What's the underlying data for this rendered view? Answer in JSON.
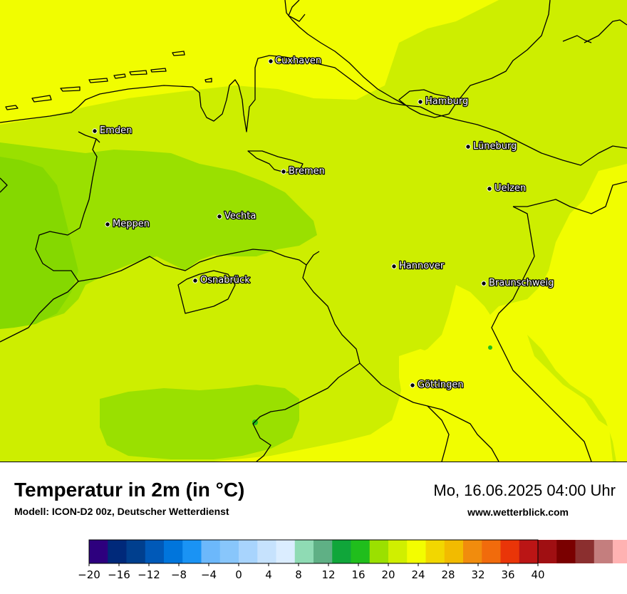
{
  "header": {
    "title": "Temperatur in 2m (in °C)",
    "model": "Modell: ICON-D2 00z, Deutscher Wetterdienst",
    "datetime": "Mo, 16.06.2025 04:00 Uhr",
    "website": "www.wetterblick.com"
  },
  "cities": [
    {
      "name": "Cuxhaven",
      "key": "cuxhaven"
    },
    {
      "name": "Hamburg",
      "key": "hamburg"
    },
    {
      "name": "Emden",
      "key": "emden"
    },
    {
      "name": "Lüneburg",
      "key": "lueneburg"
    },
    {
      "name": "Bremen",
      "key": "bremen"
    },
    {
      "name": "Uelzen",
      "key": "uelzen"
    },
    {
      "name": "Vechta",
      "key": "vechta"
    },
    {
      "name": "Meppen",
      "key": "meppen"
    },
    {
      "name": "Hannover",
      "key": "hannover"
    },
    {
      "name": "Osnabrück",
      "key": "osnabrueck"
    },
    {
      "name": "Braunschweig",
      "key": "braunschweig"
    },
    {
      "name": "Göttingen",
      "key": "goettingen"
    }
  ],
  "legend": {
    "unit": "°C",
    "min": -20,
    "max": 40,
    "step": 2.5,
    "tick_labels": [
      "−20",
      "−16",
      "−12",
      "−8",
      "−4",
      "0",
      "4",
      "8",
      "12",
      "16",
      "20",
      "24",
      "28",
      "32",
      "36",
      "40"
    ],
    "tick_values": [
      -20,
      -16,
      -12,
      -8,
      -4,
      0,
      4,
      8,
      12,
      16,
      20,
      24,
      28,
      32,
      36,
      40
    ],
    "colors": [
      "#2d007e",
      "#00297a",
      "#003f8e",
      "#0059b8",
      "#0075dc",
      "#1a93f4",
      "#6cb8fb",
      "#88c6fb",
      "#a8d4fd",
      "#c6e2fd",
      "#dbedff",
      "#8fdbb4",
      "#5fb085",
      "#10a63a",
      "#20be1c",
      "#9be000",
      "#d0ef00",
      "#f3fd00",
      "#f2d700",
      "#f2bb00",
      "#f18c0d",
      "#f16b0c",
      "#ea3508",
      "#bb1515",
      "#a00f12",
      "#7a0000",
      "#8b2f2f",
      "#c47e7e",
      "#ffb2b2",
      "#ffe0e0"
    ]
  },
  "map_colors": {
    "warm": "#f1fd00",
    "mid": "#cdee00",
    "cool": "#9ae000",
    "coolest": "#85d800",
    "boundary": "#000000"
  }
}
